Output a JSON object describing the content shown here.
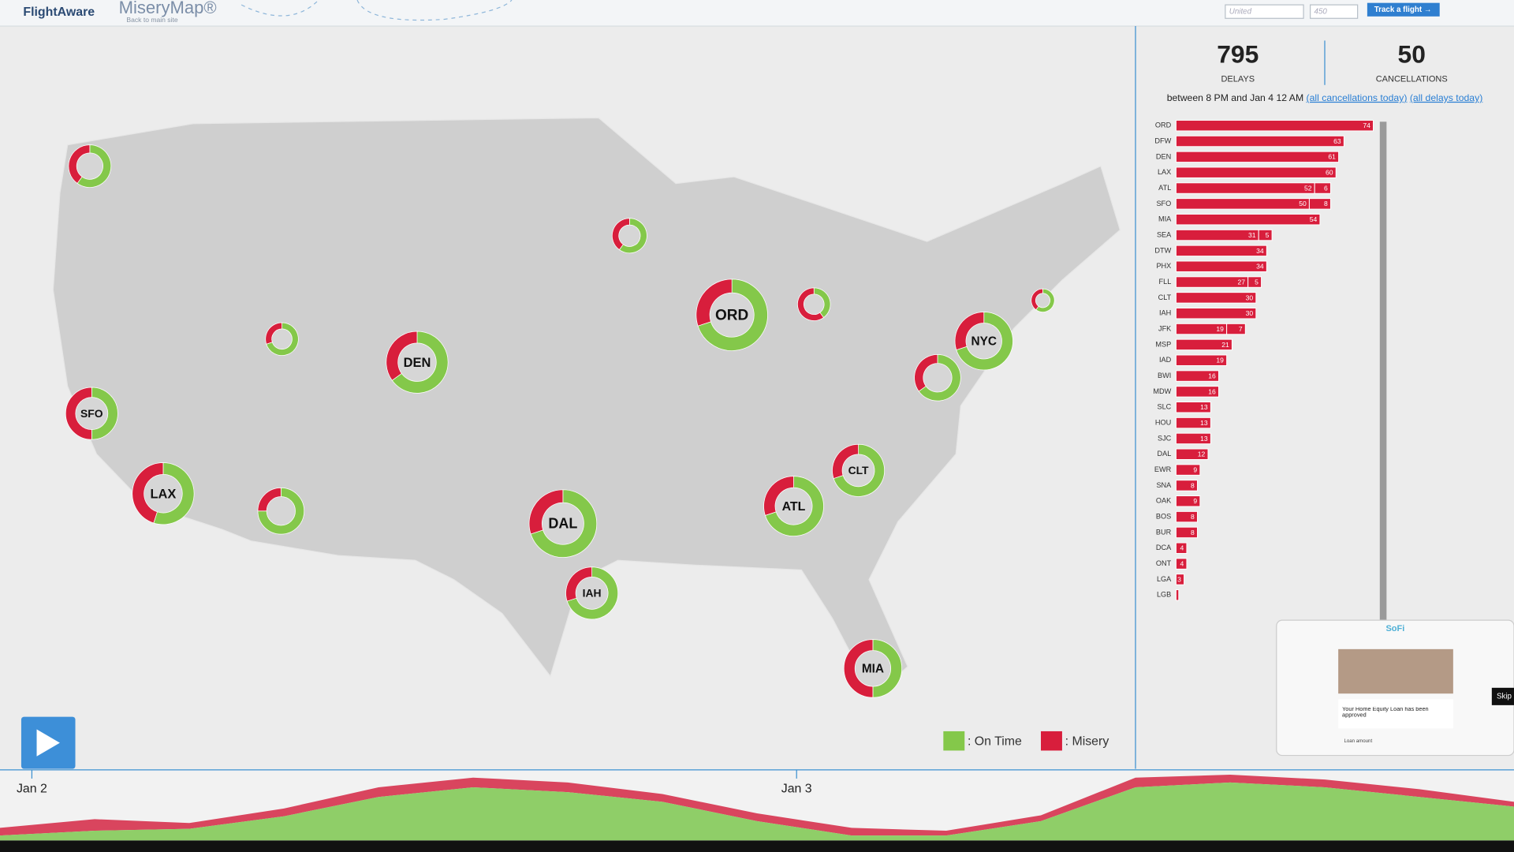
{
  "header": {
    "logo": "FlightAware",
    "app": "MiseryMap®",
    "sublink": "Back to main site",
    "airline_placeholder": "United",
    "flight_placeholder": "450",
    "track_button": "Track a flight →"
  },
  "stats": {
    "delays": 795,
    "delays_label": "DELAYS",
    "cancellations": 50,
    "cancellations_label": "CANCELLATIONS",
    "period": "between 8 PM and Jan 4 12 AM",
    "link_cancellations": "(all cancellations today)",
    "link_delays": "(all delays today)"
  },
  "chart_data": {
    "type": "bar",
    "orientation": "horizontal",
    "stacked": true,
    "categories": [
      "ORD",
      "DFW",
      "DEN",
      "LAX",
      "ATL",
      "SFO",
      "MIA",
      "SEA",
      "DTW",
      "PHX",
      "FLL",
      "CLT",
      "IAH",
      "JFK",
      "MSP",
      "IAD",
      "BWI",
      "MDW",
      "SLC",
      "HOU",
      "SJC",
      "DAL",
      "EWR",
      "SNA",
      "OAK",
      "BOS",
      "BUR",
      "DCA",
      "ONT",
      "LGA",
      "LGB"
    ],
    "series": [
      {
        "name": "Delays",
        "color": "#d81e3c",
        "values": [
          74,
          63,
          61,
          60,
          52,
          50,
          54,
          31,
          34,
          34,
          27,
          30,
          30,
          19,
          21,
          19,
          16,
          16,
          13,
          13,
          13,
          12,
          9,
          8,
          9,
          8,
          8,
          4,
          4,
          3,
          1
        ],
        "value_labels": [
          "74",
          "63",
          "61",
          "60",
          "52",
          "50",
          "54",
          "31",
          "34",
          "34",
          "27",
          "30",
          "30",
          "19",
          "21",
          "19",
          "16",
          "16",
          "13",
          "13",
          "13",
          "12",
          "9",
          "8",
          "9",
          "8",
          "8",
          "4",
          "4",
          "3",
          null
        ]
      },
      {
        "name": "Cancellations",
        "color": "#d81e3c",
        "values": [
          null,
          null,
          null,
          null,
          6,
          8,
          null,
          5,
          null,
          null,
          5,
          null,
          null,
          7,
          null,
          null,
          null,
          null,
          null,
          null,
          null,
          null,
          null,
          null,
          null,
          null,
          null,
          null,
          null,
          null,
          null
        ]
      }
    ]
  },
  "map": {
    "airports": [
      {
        "label": null,
        "on_time": 60,
        "misery": 40
      },
      {
        "label": null,
        "on_time": 60,
        "misery": 40
      },
      {
        "label": null,
        "on_time": 70,
        "misery": 30
      },
      {
        "label": "DEN",
        "on_time": 65,
        "misery": 35
      },
      {
        "label": "SFO",
        "on_time": 50,
        "misery": 50
      },
      {
        "label": "LAX",
        "on_time": 55,
        "misery": 45
      },
      {
        "label": null,
        "on_time": 75,
        "misery": 25
      },
      {
        "label": "DAL",
        "on_time": 70,
        "misery": 30
      },
      {
        "label": "IAH",
        "on_time": 70,
        "misery": 30
      },
      {
        "label": "ORD",
        "on_time": 70,
        "misery": 30
      },
      {
        "label": null,
        "on_time": 40,
        "misery": 60
      },
      {
        "label": null,
        "on_time": 60,
        "misery": 40
      },
      {
        "label": "NYC",
        "on_time": 70,
        "misery": 30
      },
      {
        "label": null,
        "on_time": 65,
        "misery": 35
      },
      {
        "label": "CLT",
        "on_time": 70,
        "misery": 30
      },
      {
        "label": "ATL",
        "on_time": 70,
        "misery": 30
      },
      {
        "label": "MIA",
        "on_time": 50,
        "misery": 50
      }
    ],
    "legend": [
      {
        "name": ": On Time",
        "color": "#84c84a"
      },
      {
        "name": ": Misery",
        "color": "#d81e3c"
      }
    ]
  },
  "timeline": {
    "labels": [
      "Jan 2",
      "Jan 3"
    ],
    "on_time": [
      5,
      10,
      12,
      25,
      45,
      55,
      50,
      40,
      20,
      5,
      5,
      20,
      55,
      60,
      55,
      45,
      35
    ],
    "misery": [
      8,
      12,
      6,
      8,
      10,
      10,
      10,
      8,
      8,
      8,
      5,
      6,
      10,
      8,
      8,
      8,
      5
    ]
  },
  "ad": {
    "brand": "SoFi",
    "headline": "Your Home Equity Loan has been approved",
    "field": "Loan amount",
    "skip": "Skip"
  }
}
